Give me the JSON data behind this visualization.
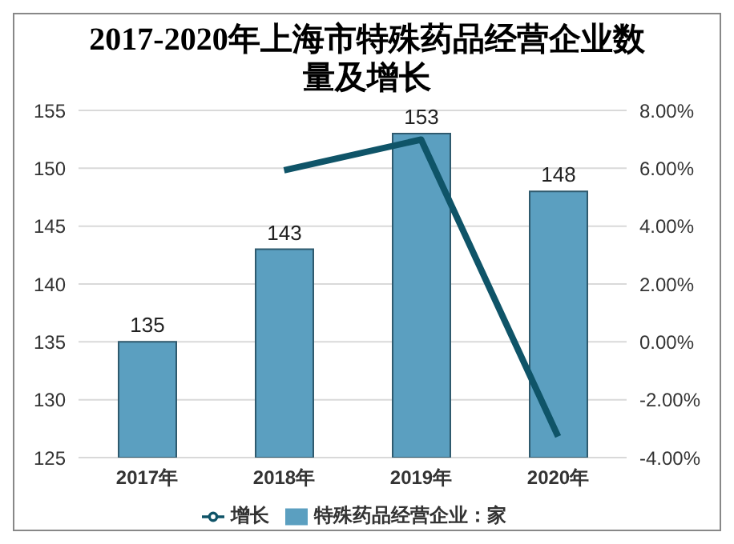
{
  "chart_data": {
    "type": "bar",
    "title": "2017-2020年上海市特殊药品经营企业数量及增长",
    "categories": [
      "2017年",
      "2018年",
      "2019年",
      "2020年"
    ],
    "series": [
      {
        "name": "特殊药品经营企业：家",
        "color": "#5b9fc0",
        "values": [
          135,
          143,
          153,
          148
        ],
        "value_labels": [
          "135",
          "143",
          "153",
          "148"
        ]
      },
      {
        "name": "增长",
        "type": "line",
        "axis": "y2",
        "color": "#0f5468",
        "values": [
          null,
          5.93,
          6.99,
          -3.27
        ]
      }
    ],
    "ylim": [
      125,
      155
    ],
    "yticks": [
      125,
      130,
      135,
      140,
      145,
      150,
      155
    ],
    "y2lim": [
      -4,
      8
    ],
    "y2ticks": [
      {
        "value": -4,
        "label": "-4.00%"
      },
      {
        "value": -2,
        "label": "-2.00%"
      },
      {
        "value": 0,
        "label": "0.00%"
      },
      {
        "value": 2,
        "label": "2.00%"
      },
      {
        "value": 4,
        "label": "4.00%"
      },
      {
        "value": 6,
        "label": "6.00%"
      },
      {
        "value": 8,
        "label": "8.00%"
      }
    ],
    "grid": "y",
    "legend": "bottom",
    "marker": "none"
  }
}
